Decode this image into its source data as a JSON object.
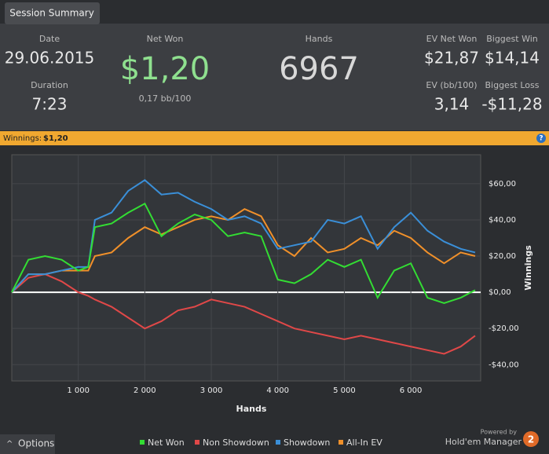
{
  "tab": "Session Summary",
  "summary": {
    "date_label": "Date",
    "date": "29.06.2015",
    "duration_label": "Duration",
    "duration": "7:23",
    "net_won_label": "Net Won",
    "net_won": "$1,20",
    "bb_per_100": "0,17 bb/100",
    "hands_label": "Hands",
    "hands": "6967",
    "ev_net_won_label": "EV Net Won",
    "ev_net_won": "$21,87",
    "biggest_win_label": "Biggest Win",
    "biggest_win": "$14,14",
    "ev_bb_label": "EV (bb/100)",
    "ev_bb": "3,14",
    "biggest_loss_label": "Biggest Loss",
    "biggest_loss": "-$11,28"
  },
  "banner": {
    "label": "Winnings:",
    "value": "$1,20",
    "help": "?"
  },
  "chart_data": {
    "type": "line",
    "xlabel": "Hands",
    "ylabel": "Winnings",
    "x": [
      0,
      250,
      500,
      750,
      1000,
      1150,
      1250,
      1500,
      1750,
      2000,
      2250,
      2500,
      2750,
      3000,
      3250,
      3500,
      3750,
      4000,
      4250,
      4500,
      4750,
      5000,
      5250,
      5500,
      5750,
      6000,
      6250,
      6500,
      6750,
      6967
    ],
    "series": [
      {
        "name": "Net Won",
        "color": "#33dd33",
        "values": [
          0,
          18,
          20,
          18,
          12,
          14,
          36,
          38,
          44,
          49,
          31,
          38,
          43,
          40,
          31,
          33,
          31,
          7,
          5,
          10,
          18,
          14,
          18,
          -3,
          12,
          16,
          -3,
          -6,
          -3,
          1.2
        ]
      },
      {
        "name": "Non Showdown",
        "color": "#e04848",
        "values": [
          0,
          8,
          10,
          6,
          0,
          -2,
          -4,
          -8,
          -14,
          -20,
          -16,
          -10,
          -8,
          -4,
          -6,
          -8,
          -12,
          -16,
          -20,
          -22,
          -24,
          -26,
          -24,
          -26,
          -28,
          -30,
          -32,
          -34,
          -30,
          -24
        ]
      },
      {
        "name": "Showdown",
        "color": "#3a8fd8",
        "values": [
          0,
          10,
          10,
          12,
          14,
          14,
          40,
          44,
          56,
          62,
          54,
          55,
          50,
          46,
          40,
          42,
          38,
          24,
          26,
          28,
          40,
          38,
          42,
          24,
          36,
          44,
          34,
          28,
          24,
          22
        ]
      },
      {
        "name": "All-In EV",
        "color": "#f0902a",
        "values": [
          0,
          10,
          10,
          12,
          12,
          12,
          20,
          22,
          30,
          36,
          32,
          36,
          40,
          42,
          40,
          46,
          42,
          26,
          20,
          30,
          22,
          24,
          30,
          26,
          34,
          30,
          22,
          16,
          22,
          20
        ]
      }
    ],
    "xlim": [
      0,
      7050
    ],
    "xticks": [
      {
        "value": 1000,
        "label": "1 000"
      },
      {
        "value": 2000,
        "label": "2 000"
      },
      {
        "value": 3000,
        "label": "3 000"
      },
      {
        "value": 4000,
        "label": "4 000"
      },
      {
        "value": 5000,
        "label": "5 000"
      },
      {
        "value": 6000,
        "label": "6 000"
      }
    ],
    "ylim": [
      -49,
      76
    ],
    "yticks": [
      {
        "value": -40,
        "label": "-$40,00"
      },
      {
        "value": -20,
        "label": "-$20,00"
      },
      {
        "value": 0,
        "label": "$0,00"
      },
      {
        "value": 20,
        "label": "$20,00"
      },
      {
        "value": 40,
        "label": "$40,00"
      },
      {
        "value": 60,
        "label": "$60,00"
      }
    ],
    "grid": true
  },
  "footer": {
    "options": "Options",
    "powered_by": "Powered by",
    "brand": "Hold'em Manager",
    "badge": "2"
  }
}
